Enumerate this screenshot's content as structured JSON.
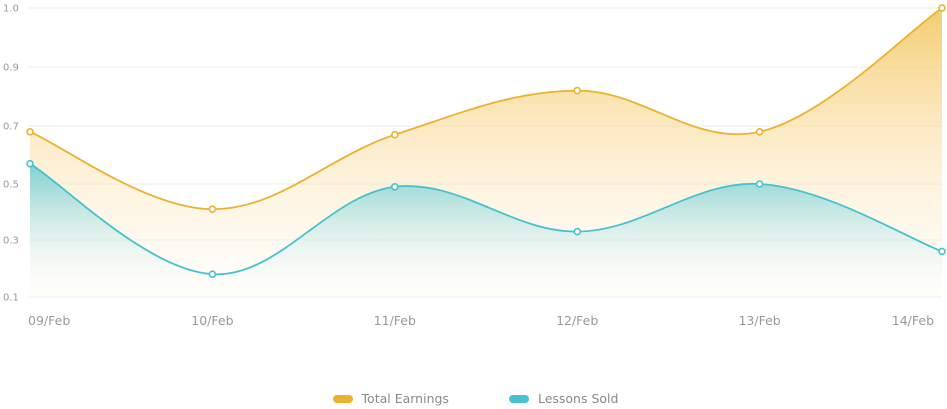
{
  "chart_data": {
    "type": "area",
    "categories": [
      "09/Feb",
      "10/Feb",
      "11/Feb",
      "12/Feb",
      "13/Feb",
      "14/Feb"
    ],
    "y_ticks": [
      "0.1",
      "0.3",
      "0.5",
      "0.7",
      "0.9",
      "1.0"
    ],
    "series": [
      {
        "name": "Total Earnings",
        "color": "#ebb22f",
        "values": [
          0.68,
          0.41,
          0.67,
          0.82,
          0.68,
          1.0
        ]
      },
      {
        "name": "Lessons Sold",
        "color": "#46c2cf",
        "values": [
          0.57,
          0.18,
          0.49,
          0.33,
          0.5,
          0.26
        ]
      }
    ],
    "grid": true,
    "legend_position": "bottom-center"
  }
}
